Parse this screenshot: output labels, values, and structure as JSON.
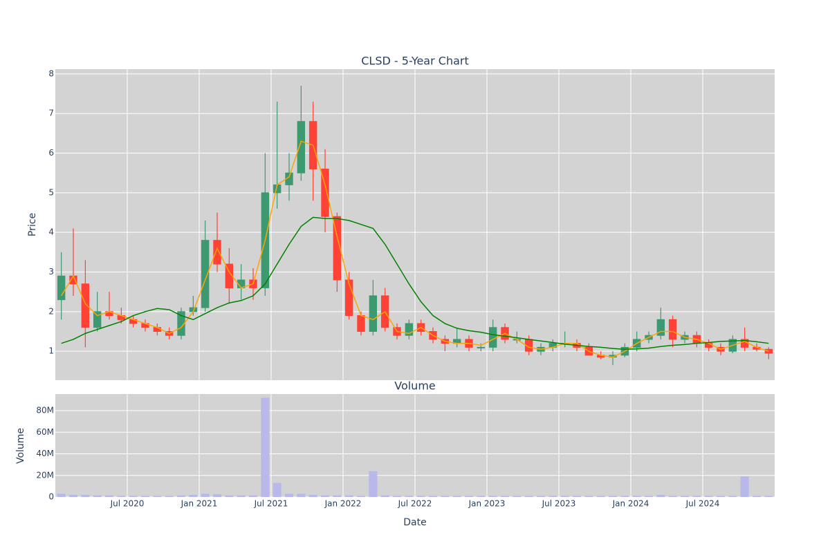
{
  "chart_data": [
    {
      "type": "candlestick",
      "title": "CLSD - 5-Year Chart",
      "y_label": "Price",
      "x": [
        "2020-01",
        "2020-02",
        "2020-03",
        "2020-04",
        "2020-05",
        "2020-06",
        "2020-07",
        "2020-08",
        "2020-09",
        "2020-10",
        "2020-11",
        "2020-12",
        "2021-01",
        "2021-02",
        "2021-03",
        "2021-04",
        "2021-05",
        "2021-06",
        "2021-07",
        "2021-08",
        "2021-09",
        "2021-10",
        "2021-11",
        "2021-12",
        "2022-01",
        "2022-02",
        "2022-03",
        "2022-04",
        "2022-05",
        "2022-06",
        "2022-07",
        "2022-08",
        "2022-09",
        "2022-10",
        "2022-11",
        "2022-12",
        "2023-01",
        "2023-02",
        "2023-03",
        "2023-04",
        "2023-05",
        "2023-06",
        "2023-07",
        "2023-08",
        "2023-09",
        "2023-10",
        "2023-11",
        "2023-12",
        "2024-01",
        "2024-02",
        "2024-03",
        "2024-04",
        "2024-05",
        "2024-06",
        "2024-07",
        "2024-08",
        "2024-09",
        "2024-10",
        "2024-11",
        "2024-12"
      ],
      "open": [
        2.3,
        2.9,
        2.7,
        1.6,
        2.0,
        1.9,
        1.8,
        1.7,
        1.6,
        1.5,
        1.4,
        2.0,
        2.1,
        3.8,
        3.2,
        2.6,
        2.8,
        2.6,
        5.0,
        5.2,
        5.5,
        6.8,
        5.6,
        4.4,
        2.8,
        1.9,
        1.5,
        2.4,
        1.6,
        1.4,
        1.7,
        1.5,
        1.3,
        1.2,
        1.3,
        1.1,
        1.1,
        1.6,
        1.3,
        1.3,
        1.0,
        1.1,
        1.2,
        1.2,
        1.1,
        0.9,
        0.85,
        0.9,
        1.1,
        1.3,
        1.4,
        1.8,
        1.3,
        1.4,
        1.2,
        1.1,
        1.0,
        1.3,
        1.1,
        1.05
      ],
      "high": [
        3.5,
        4.1,
        3.3,
        2.5,
        2.5,
        2.1,
        1.9,
        1.8,
        1.7,
        1.6,
        2.1,
        2.4,
        4.3,
        4.5,
        3.6,
        3.2,
        3.1,
        6.0,
        7.3,
        6.0,
        7.7,
        7.3,
        6.1,
        4.5,
        3.0,
        2.0,
        2.8,
        2.6,
        1.7,
        1.8,
        1.8,
        1.6,
        1.4,
        1.6,
        1.4,
        1.2,
        1.8,
        1.7,
        1.5,
        1.4,
        1.2,
        1.3,
        1.5,
        1.3,
        1.2,
        1.0,
        1.0,
        1.2,
        1.5,
        1.5,
        2.1,
        1.9,
        1.5,
        1.5,
        1.3,
        1.2,
        1.4,
        1.6,
        1.2,
        1.1
      ],
      "low": [
        1.8,
        2.4,
        1.1,
        1.5,
        1.8,
        1.7,
        1.6,
        1.5,
        1.4,
        1.3,
        1.3,
        1.9,
        2.0,
        3.0,
        2.2,
        2.3,
        2.3,
        2.4,
        4.6,
        4.8,
        5.3,
        4.8,
        4.0,
        2.5,
        1.8,
        1.4,
        1.4,
        1.5,
        1.3,
        1.3,
        1.4,
        1.2,
        1.0,
        1.1,
        1.0,
        1.0,
        1.0,
        1.2,
        1.2,
        0.9,
        0.9,
        1.0,
        1.1,
        1.0,
        0.9,
        0.8,
        0.65,
        0.85,
        1.0,
        1.2,
        1.3,
        1.1,
        1.2,
        1.1,
        1.0,
        0.9,
        0.95,
        1.0,
        1.0,
        0.8
      ],
      "close": [
        2.9,
        2.7,
        1.6,
        2.0,
        1.9,
        1.8,
        1.7,
        1.6,
        1.5,
        1.4,
        2.0,
        2.1,
        3.8,
        3.2,
        2.6,
        2.8,
        2.6,
        5.0,
        5.2,
        5.5,
        6.8,
        5.6,
        4.4,
        2.8,
        1.9,
        1.5,
        2.4,
        1.6,
        1.4,
        1.7,
        1.5,
        1.3,
        1.2,
        1.3,
        1.1,
        1.1,
        1.6,
        1.3,
        1.3,
        1.0,
        1.1,
        1.2,
        1.2,
        1.1,
        0.9,
        0.85,
        0.9,
        1.1,
        1.3,
        1.4,
        1.8,
        1.3,
        1.4,
        1.2,
        1.1,
        1.0,
        1.3,
        1.1,
        1.05,
        0.95
      ],
      "increasing_color": "#3d9970",
      "decreasing_color": "#ff4136",
      "series": [
        {
          "color": "orange",
          "values": [
            2.4,
            2.9,
            2.2,
            1.9,
            2.0,
            1.9,
            1.8,
            1.7,
            1.6,
            1.45,
            1.6,
            2.0,
            2.8,
            3.6,
            3.0,
            2.6,
            2.7,
            3.8,
            5.2,
            5.4,
            6.3,
            6.2,
            5.2,
            3.9,
            2.7,
            1.9,
            1.8,
            2.0,
            1.5,
            1.45,
            1.6,
            1.4,
            1.25,
            1.2,
            1.2,
            1.15,
            1.3,
            1.45,
            1.3,
            1.1,
            1.05,
            1.1,
            1.2,
            1.2,
            1.0,
            0.9,
            0.85,
            1.0,
            1.2,
            1.35,
            1.5,
            1.5,
            1.35,
            1.3,
            1.2,
            1.05,
            1.15,
            1.25,
            1.1,
            1.0
          ]
        },
        {
          "color": "green",
          "values": [
            1.2,
            1.3,
            1.45,
            1.55,
            1.65,
            1.75,
            1.9,
            2.0,
            2.08,
            2.05,
            1.9,
            1.8,
            1.95,
            2.1,
            2.22,
            2.28,
            2.4,
            2.7,
            3.2,
            3.7,
            4.15,
            4.38,
            4.35,
            4.35,
            4.3,
            4.2,
            4.1,
            3.7,
            3.2,
            2.7,
            2.25,
            1.9,
            1.7,
            1.58,
            1.52,
            1.48,
            1.42,
            1.38,
            1.34,
            1.3,
            1.26,
            1.22,
            1.18,
            1.15,
            1.12,
            1.1,
            1.07,
            1.05,
            1.06,
            1.08,
            1.12,
            1.15,
            1.17,
            1.2,
            1.22,
            1.25,
            1.26,
            1.27,
            1.24,
            1.2
          ]
        }
      ],
      "xlim": [
        "2020-01",
        "2025-01"
      ],
      "ylim": [
        0.27,
        8.12
      ],
      "yticks": [
        1,
        2,
        3,
        4,
        5,
        6,
        7,
        8
      ],
      "grid": true
    },
    {
      "type": "bar",
      "title": "Volume",
      "y_label": "Volume",
      "x_label": "Date",
      "color": "#b8b8ea",
      "x": [
        "2020-01",
        "2020-02",
        "2020-03",
        "2020-04",
        "2020-05",
        "2020-06",
        "2020-07",
        "2020-08",
        "2020-09",
        "2020-10",
        "2020-11",
        "2020-12",
        "2021-01",
        "2021-02",
        "2021-03",
        "2021-04",
        "2021-05",
        "2021-06",
        "2021-07",
        "2021-08",
        "2021-09",
        "2021-10",
        "2021-11",
        "2021-12",
        "2022-01",
        "2022-02",
        "2022-03",
        "2022-04",
        "2022-05",
        "2022-06",
        "2022-07",
        "2022-08",
        "2022-09",
        "2022-10",
        "2022-11",
        "2022-12",
        "2023-01",
        "2023-02",
        "2023-03",
        "2023-04",
        "2023-05",
        "2023-06",
        "2023-07",
        "2023-08",
        "2023-09",
        "2023-10",
        "2023-11",
        "2023-12",
        "2024-01",
        "2024-02",
        "2024-03",
        "2024-04",
        "2024-05",
        "2024-06",
        "2024-07",
        "2024-08",
        "2024-09",
        "2024-10",
        "2024-11",
        "2024-12"
      ],
      "values": [
        3000000,
        2000000,
        2000000,
        1500000,
        1500000,
        1000000,
        1000000,
        1000000,
        1000000,
        1000000,
        1500000,
        2000000,
        3000000,
        2500000,
        1500000,
        1500000,
        1500000,
        92000000,
        13000000,
        3000000,
        3000000,
        2000000,
        1500000,
        1500000,
        1500000,
        1000000,
        24000000,
        1500000,
        1000000,
        1000000,
        1000000,
        1000000,
        1000000,
        1000000,
        1000000,
        1000000,
        1000000,
        1000000,
        1000000,
        1000000,
        1000000,
        1000000,
        1000000,
        1000000,
        1000000,
        1000000,
        1000000,
        1000000,
        1000000,
        1000000,
        2000000,
        1000000,
        1000000,
        1000000,
        1000000,
        1000000,
        1000000,
        19000000,
        1000000,
        1000000
      ],
      "xlim": [
        "2020-01",
        "2025-01"
      ],
      "xticks": [
        {
          "value": "2020-07",
          "label": "Jul 2020"
        },
        {
          "value": "2021-01",
          "label": "Jan 2021"
        },
        {
          "value": "2021-07",
          "label": "Jul 2021"
        },
        {
          "value": "2022-01",
          "label": "Jan 2022"
        },
        {
          "value": "2022-07",
          "label": "Jul 2022"
        },
        {
          "value": "2023-01",
          "label": "Jan 2023"
        },
        {
          "value": "2023-07",
          "label": "Jul 2023"
        },
        {
          "value": "2024-01",
          "label": "Jan 2024"
        },
        {
          "value": "2024-07",
          "label": "Jul 2024"
        }
      ],
      "ylim": [
        0,
        95400000
      ],
      "yticks": [
        0,
        {
          "value": 20000000,
          "label": "20M"
        },
        {
          "value": 40000000,
          "label": "40M"
        },
        {
          "value": 60000000,
          "label": "60M"
        },
        {
          "value": 80000000,
          "label": "80M"
        }
      ],
      "grid": true
    }
  ]
}
